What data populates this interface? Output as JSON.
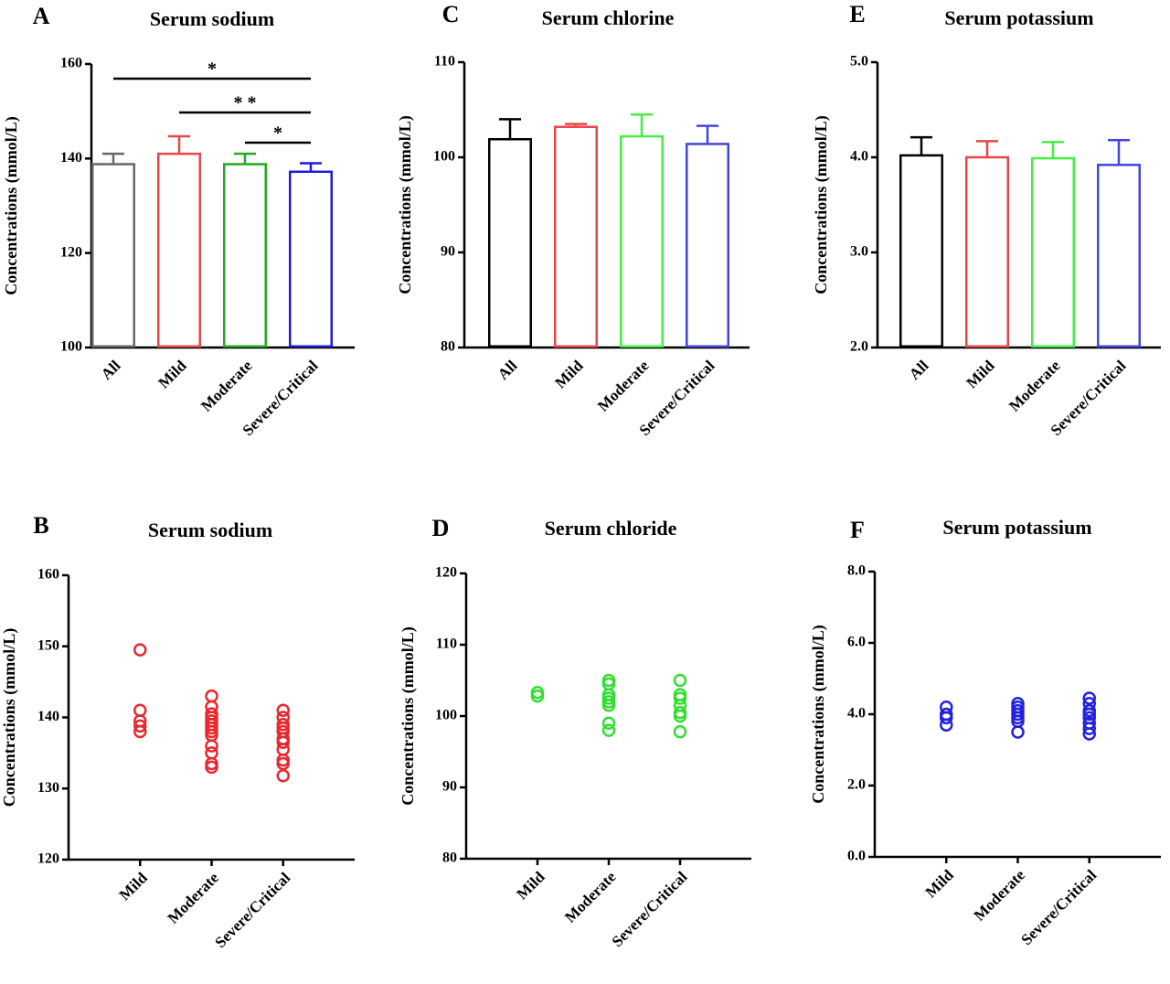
{
  "chart_data": [
    {
      "type": "bar",
      "panel": "A",
      "title": "Serum sodium",
      "ylabel": "Concentrations (mmol/L)",
      "categories": [
        "All",
        "Mild",
        "Moderate",
        "Severe/Critical"
      ],
      "values": [
        138.8,
        141,
        138.8,
        137.2
      ],
      "errors": [
        2.2,
        3.7,
        2.2,
        1.8
      ],
      "colors": [
        "#666666",
        "#e8474a",
        "#22aa22",
        "#1a1adc"
      ],
      "ylim": [
        100,
        160
      ],
      "yticks": [
        100,
        120,
        140,
        160
      ],
      "annotations": [
        "*",
        "* *",
        "*"
      ]
    },
    {
      "type": "scatter",
      "panel": "B",
      "title": "Serum sodium",
      "ylabel": "Concentrations (mmol/L)",
      "categories": [
        "Mild",
        "Moderate",
        "Severe/Critical"
      ],
      "color": "#e8282e",
      "values": [
        [
          149.5,
          141,
          139.5,
          138.8,
          138
        ],
        [
          143,
          141.5,
          140.5,
          140,
          139.5,
          139,
          138.5,
          138,
          137.5,
          136,
          135,
          133.5,
          133
        ],
        [
          141,
          140,
          139,
          138.5,
          138,
          137,
          136.5,
          135.5,
          134,
          133.5,
          131.8
        ]
      ],
      "ylim": [
        120,
        160
      ],
      "yticks": [
        120,
        130,
        140,
        150,
        160
      ]
    },
    {
      "type": "bar",
      "panel": "C",
      "title": "Serum chlorine",
      "ylabel": "Concentrations (mmol/L)",
      "categories": [
        "All",
        "Mild",
        "Moderate",
        "Severe/Critical"
      ],
      "values": [
        101.9,
        103.2,
        102.2,
        101.4
      ],
      "errors": [
        2.1,
        0.3,
        2.3,
        1.9
      ],
      "colors": [
        "#000000",
        "#e8474a",
        "#44ee44",
        "#4444dd"
      ],
      "ylim": [
        80,
        110
      ],
      "yticks": [
        80,
        90,
        100,
        110
      ]
    },
    {
      "type": "scatter",
      "panel": "D",
      "title": "Serum chloride",
      "ylabel": "Concentrations (mmol/L)",
      "categories": [
        "Mild",
        "Moderate",
        "Severe/Critical"
      ],
      "color": "#33dd33",
      "values": [
        [
          103.3,
          102.8
        ],
        [
          105,
          104.5,
          103,
          102.5,
          102,
          101.5,
          99,
          98
        ],
        [
          105,
          103,
          102.5,
          101.5,
          100.5,
          100,
          97.8
        ]
      ],
      "ylim": [
        80,
        120
      ],
      "yticks": [
        80,
        90,
        100,
        110,
        120
      ]
    },
    {
      "type": "bar",
      "panel": "E",
      "title": "Serum potassium",
      "ylabel": "Concentrations (mmol/L)",
      "categories": [
        "All",
        "Mild",
        "Moderate",
        "Severe/Critical"
      ],
      "values": [
        4.02,
        4.0,
        3.99,
        3.92
      ],
      "errors": [
        0.19,
        0.17,
        0.17,
        0.26
      ],
      "colors": [
        "#000000",
        "#e8474a",
        "#44ee44",
        "#4444dd"
      ],
      "ylim": [
        2,
        5
      ],
      "yticks": [
        {
          "value": 2,
          "label": "2.0"
        },
        {
          "value": 3,
          "label": "3.0"
        },
        {
          "value": 4,
          "label": "4.0"
        },
        {
          "value": 5,
          "label": "5.0"
        }
      ]
    },
    {
      "type": "scatter",
      "panel": "F",
      "title": "Serum potassium",
      "ylabel": "Concentrations (mmol/L)",
      "categories": [
        "Mild",
        "Moderate",
        "Severe/Critical"
      ],
      "color": "#2222dd",
      "values": [
        [
          4.2,
          4.0,
          3.9,
          3.7
        ],
        [
          4.3,
          4.2,
          4.1,
          4.0,
          3.9,
          3.8,
          3.5
        ],
        [
          4.45,
          4.3,
          4.1,
          4.0,
          3.9,
          3.75,
          3.6,
          3.45
        ]
      ],
      "ylim": [
        0,
        8
      ],
      "yticks": [
        {
          "value": 0,
          "label": "0.0"
        },
        {
          "value": 2,
          "label": "2.0"
        },
        {
          "value": 4,
          "label": "4.0"
        },
        {
          "value": 6,
          "label": "6.0"
        },
        {
          "value": 8,
          "label": "8.0"
        }
      ]
    }
  ]
}
